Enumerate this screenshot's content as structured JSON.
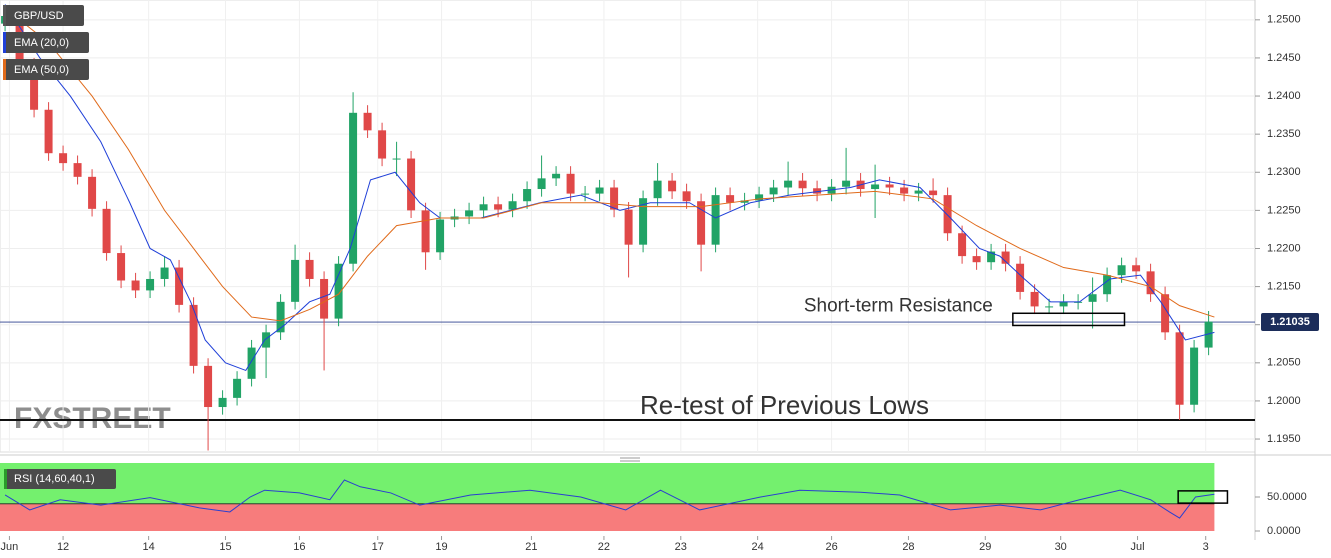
{
  "chart_data": [
    {
      "type": "candlestick",
      "title": "GBP/USD",
      "watermark": "FXSTREET",
      "up_color": "#21a366",
      "down_color": "#e04848",
      "open": [
        1.2495,
        1.2505,
        1.244,
        1.2382,
        1.2325,
        1.2312,
        1.2294,
        1.2252,
        1.2194,
        1.2158,
        1.2145,
        1.216,
        1.2175,
        1.2126,
        1.2046,
        1.1992,
        1.2004,
        1.2029,
        1.207,
        1.209,
        1.213,
        1.2185,
        1.216,
        1.2108,
        1.218,
        1.2378,
        1.2355,
        1.2318,
        1.2318,
        1.225,
        1.2195,
        1.2238,
        1.2242,
        1.225,
        1.2258,
        1.2251,
        1.2262,
        1.2278,
        1.2292,
        1.2298,
        1.2272,
        1.2272,
        1.228,
        1.2251,
        1.2205,
        1.2266,
        1.2289,
        1.2275,
        1.2262,
        1.2205,
        1.227,
        1.226,
        1.2263,
        1.2271,
        1.228,
        1.2289,
        1.2279,
        1.2272,
        1.2281,
        1.2289,
        1.2278,
        1.2284,
        1.228,
        1.2272,
        1.2276,
        1.227,
        1.222,
        1.219,
        1.2182,
        1.2196,
        1.218,
        1.2143,
        1.2124,
        1.2124,
        1.213,
        1.213,
        1.214,
        1.2165,
        1.2178,
        1.217,
        1.214,
        1.209,
        1.1995,
        1.207
      ],
      "high": [
        1.2518,
        1.2515,
        1.245,
        1.2392,
        1.2335,
        1.2322,
        1.2304,
        1.2262,
        1.2204,
        1.2168,
        1.217,
        1.219,
        1.2185,
        1.2136,
        1.2056,
        1.2014,
        1.2039,
        1.208,
        1.21,
        1.214,
        1.2205,
        1.2195,
        1.217,
        1.219,
        1.2405,
        1.2388,
        1.2365,
        1.234,
        1.2328,
        1.226,
        1.2248,
        1.2252,
        1.226,
        1.2268,
        1.2268,
        1.2272,
        1.2288,
        1.2322,
        1.2308,
        1.2308,
        1.2282,
        1.229,
        1.229,
        1.2261,
        1.2276,
        1.2312,
        1.2299,
        1.2285,
        1.2272,
        1.228,
        1.228,
        1.2273,
        1.2281,
        1.229,
        1.2314,
        1.2299,
        1.2289,
        1.2291,
        1.2332,
        1.2299,
        1.231,
        1.2294,
        1.229,
        1.2286,
        1.2292,
        1.228,
        1.223,
        1.22,
        1.2206,
        1.2206,
        1.219,
        1.2153,
        1.2134,
        1.214,
        1.214,
        1.2162,
        1.2175,
        1.2188,
        1.2188,
        1.218,
        1.215,
        1.21,
        1.208,
        1.2118
      ],
      "low": [
        1.2485,
        1.243,
        1.2372,
        1.2315,
        1.2302,
        1.2284,
        1.2242,
        1.2184,
        1.2148,
        1.2135,
        1.2135,
        1.215,
        1.2116,
        1.2036,
        1.1935,
        1.1982,
        1.1994,
        1.2019,
        1.203,
        1.208,
        1.212,
        1.215,
        1.204,
        1.2098,
        1.217,
        1.2345,
        1.2308,
        1.2295,
        1.224,
        1.2172,
        1.2185,
        1.2228,
        1.2232,
        1.224,
        1.2241,
        1.2241,
        1.2252,
        1.2268,
        1.2282,
        1.2262,
        1.2262,
        1.2262,
        1.2241,
        1.2162,
        1.2195,
        1.2256,
        1.2265,
        1.2252,
        1.217,
        1.2195,
        1.225,
        1.225,
        1.2253,
        1.2261,
        1.227,
        1.2269,
        1.2262,
        1.2262,
        1.2271,
        1.2268,
        1.224,
        1.227,
        1.2262,
        1.2262,
        1.226,
        1.221,
        1.218,
        1.2172,
        1.2172,
        1.217,
        1.2133,
        1.2114,
        1.2114,
        1.2114,
        1.212,
        1.2095,
        1.213,
        1.2155,
        1.216,
        1.213,
        1.208,
        1.1975,
        1.1985,
        1.206
      ],
      "close": [
        1.2505,
        1.244,
        1.2382,
        1.2325,
        1.2312,
        1.2294,
        1.2252,
        1.2194,
        1.2158,
        1.2145,
        1.216,
        1.2175,
        1.2126,
        1.2046,
        1.1992,
        1.2004,
        1.2029,
        1.207,
        1.209,
        1.213,
        1.2185,
        1.216,
        1.2108,
        1.218,
        1.2378,
        1.2355,
        1.2318,
        1.2318,
        1.225,
        1.2195,
        1.2238,
        1.2242,
        1.225,
        1.2258,
        1.2251,
        1.2262,
        1.2278,
        1.2292,
        1.2298,
        1.2272,
        1.2272,
        1.228,
        1.2251,
        1.2205,
        1.2266,
        1.2289,
        1.2275,
        1.2262,
        1.2205,
        1.227,
        1.226,
        1.2263,
        1.2271,
        1.228,
        1.2289,
        1.2279,
        1.2272,
        1.2281,
        1.2289,
        1.2278,
        1.2284,
        1.228,
        1.2272,
        1.2276,
        1.227,
        1.222,
        1.219,
        1.2182,
        1.2196,
        1.218,
        1.2143,
        1.2124,
        1.2124,
        1.213,
        1.213,
        1.214,
        1.2165,
        1.2178,
        1.217,
        1.214,
        1.209,
        1.1995,
        1.207,
        1.2104
      ],
      "series": [
        {
          "name": "EMA (20,0)",
          "color": "#1f3fd8",
          "x": [
            0,
            2.4,
            4.5,
            6.6,
            8.6,
            10,
            11.4,
            12.8,
            13.8,
            15.2,
            16.6,
            17.9,
            19.3,
            21,
            22.4,
            23.8,
            25.2,
            26.9,
            28.6,
            30,
            32.8,
            36.9,
            39.7,
            42.4,
            44.5,
            47.2,
            49,
            51.4,
            54.1,
            58.3,
            60.3,
            63.1,
            65.2,
            67.2,
            68.6,
            70.3,
            72.1,
            74.1,
            76.2,
            78.3,
            79.7,
            81.4,
            83.4
          ],
          "values": [
            1.252,
            1.245,
            1.24,
            1.234,
            1.226,
            1.22,
            1.2185,
            1.213,
            1.208,
            1.205,
            1.204,
            1.208,
            1.21,
            1.213,
            1.214,
            1.22,
            1.229,
            1.23,
            1.226,
            1.224,
            1.224,
            1.226,
            1.227,
            1.225,
            1.226,
            1.226,
            1.224,
            1.226,
            1.227,
            1.228,
            1.229,
            1.228,
            1.224,
            1.22,
            1.219,
            1.216,
            1.213,
            1.213,
            1.216,
            1.2165,
            1.213,
            1.208,
            1.209
          ]
        },
        {
          "name": "EMA (50,0)",
          "color": "#e06a1a",
          "x": [
            0,
            3,
            6,
            8.5,
            11,
            13,
            15,
            17,
            19,
            21,
            23,
            25,
            27,
            30,
            33,
            37,
            41,
            44,
            48,
            52,
            56,
            60,
            64,
            67,
            70,
            73,
            76,
            79,
            81,
            83.4
          ],
          "values": [
            1.2515,
            1.247,
            1.24,
            1.233,
            1.225,
            1.22,
            1.215,
            1.211,
            1.2105,
            1.212,
            1.214,
            1.219,
            1.223,
            1.224,
            1.224,
            1.226,
            1.226,
            1.2255,
            1.2255,
            1.2265,
            1.227,
            1.2275,
            1.2265,
            1.223,
            1.22,
            1.2175,
            1.2165,
            1.215,
            1.2125,
            1.211
          ]
        }
      ],
      "current_price": 1.21035,
      "level": {
        "value": 1.1975,
        "label": "Re-test of Previous Lows"
      },
      "annotation": {
        "text": "Short-term Resistance",
        "x": [
          69.5,
          77.2
        ],
        "y": [
          1.2099,
          1.2115
        ]
      },
      "xlim": [
        -0.35,
        86.2
      ],
      "xticks": [
        {
          "value": 0.3,
          "label": "Jun"
        },
        {
          "value": 4.0,
          "label": "12"
        },
        {
          "value": 9.9,
          "label": "14"
        },
        {
          "value": 15.2,
          "label": "15"
        },
        {
          "value": 20.3,
          "label": "16"
        },
        {
          "value": 25.7,
          "label": "17"
        },
        {
          "value": 30.1,
          "label": "19"
        },
        {
          "value": 36.3,
          "label": "21"
        },
        {
          "value": 41.3,
          "label": "22"
        },
        {
          "value": 46.6,
          "label": "23"
        },
        {
          "value": 51.9,
          "label": "24"
        },
        {
          "value": 57.0,
          "label": "26"
        },
        {
          "value": 62.3,
          "label": "28"
        },
        {
          "value": 67.6,
          "label": "29"
        },
        {
          "value": 72.8,
          "label": "30"
        },
        {
          "value": 78.1,
          "label": "Jul"
        },
        {
          "value": 82.8,
          "label": "3"
        }
      ],
      "ylim": [
        1.1933,
        1.2526
      ],
      "yticks": [
        {
          "value": 1.195,
          "label": "1.1950"
        },
        {
          "value": 1.2,
          "label": "1.2000"
        },
        {
          "value": 1.205,
          "label": "1.2050"
        },
        {
          "value": 1.21,
          "label": "1.2100"
        },
        {
          "value": 1.215,
          "label": "1.2150"
        },
        {
          "value": 1.22,
          "label": "1.2200"
        },
        {
          "value": 1.225,
          "label": "1.2250"
        },
        {
          "value": 1.23,
          "label": "1.2300"
        },
        {
          "value": 1.235,
          "label": "1.2350"
        },
        {
          "value": 1.24,
          "label": "1.2400"
        },
        {
          "value": 1.245,
          "label": "1.2450"
        },
        {
          "value": 1.25,
          "label": "1.2500"
        }
      ],
      "grid": true
    },
    {
      "type": "line",
      "title": "RSI (14,60,40,1)",
      "color": "#2a3fd0",
      "x": [
        0,
        1.7,
        3.8,
        6.6,
        10,
        13.4,
        15.5,
        16.9,
        17.9,
        20.3,
        22.4,
        23.4,
        24.5,
        26.6,
        28.6,
        32.1,
        36.2,
        39.7,
        42.8,
        45.2,
        47.9,
        52.1,
        54.8,
        59,
        61.7,
        65.2,
        68.6,
        71.4,
        74.1,
        76.9,
        79,
        80.3,
        81,
        82.1,
        83.4
      ],
      "values": [
        53,
        31,
        46,
        38,
        49,
        34,
        28,
        50,
        60,
        56,
        46,
        75,
        65,
        56,
        38,
        53,
        60,
        50,
        31,
        60,
        31,
        50,
        60,
        57,
        53,
        31,
        38,
        31,
        46,
        60,
        46,
        28,
        19,
        50,
        54
      ],
      "threshold": 40,
      "upper_color": "#74f06e",
      "lower_color": "#f77c7c",
      "box": {
        "x": [
          80.9,
          84.3
        ],
        "y": [
          41,
          59
        ]
      },
      "ylim": [
        0,
        100
      ],
      "yticks": [
        {
          "value": 0,
          "label": "0.0000"
        },
        {
          "value": 50,
          "label": "50.0000"
        }
      ]
    }
  ]
}
